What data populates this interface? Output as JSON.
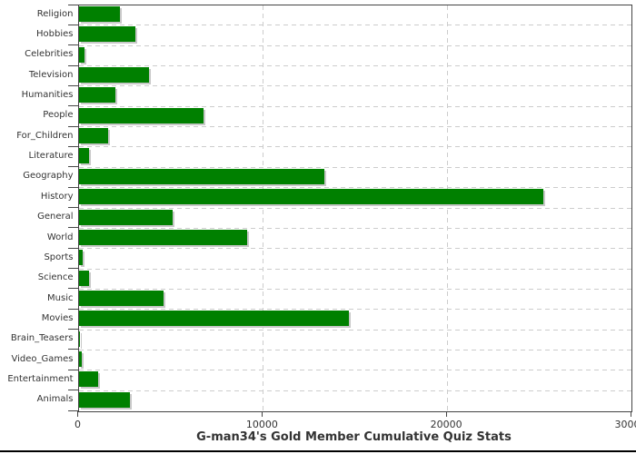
{
  "chart_data": {
    "type": "bar",
    "orientation": "horizontal",
    "title": "G-man34's Gold Member Cumulative Quiz Stats",
    "title_position": "bottom",
    "categories": [
      "Religion",
      "Hobbies",
      "Celebrities",
      "Television",
      "Humanities",
      "People",
      "For_Children",
      "Literature",
      "Geography",
      "History",
      "General",
      "World",
      "Sports",
      "Science",
      "Music",
      "Movies",
      "Brain_Teasers",
      "Video_Games",
      "Entertainment",
      "Animals"
    ],
    "values": [
      2240,
      3090,
      340,
      3830,
      1980,
      6790,
      1610,
      560,
      13320,
      25200,
      5110,
      9130,
      220,
      580,
      4620,
      14680,
      70,
      160,
      1070,
      2800
    ],
    "xlim": [
      0,
      30000
    ],
    "x_ticks": [
      0,
      10000,
      20000,
      30000
    ],
    "x_tick_labels": [
      "0",
      "10000",
      "20000",
      "30000"
    ],
    "grid": "dashed",
    "legend": "none",
    "colors": {
      "bar": "#008000",
      "bar_shadow": "#c8c8c8",
      "gridline": "#cccccc",
      "axis": "#444444",
      "text": "#333333"
    }
  }
}
